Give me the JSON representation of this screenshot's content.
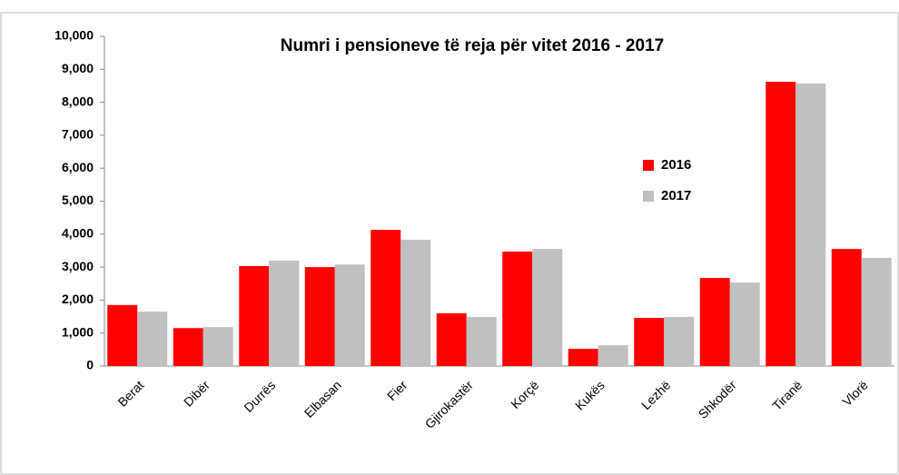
{
  "chart_data": {
    "type": "bar",
    "title": "Numri i pensioneve të reja për vitet 2016 - 2017",
    "categories": [
      "Berat",
      "Dibër",
      "Durrës",
      "Elbasan",
      "Fier",
      "Gjirokastër",
      "Korçë",
      "Kukës",
      "Lezhë",
      "Shkodër",
      "Tiranë",
      "Vlorë"
    ],
    "series": [
      {
        "name": "2016",
        "color": "#ff0000",
        "values": [
          1850,
          1150,
          3030,
          3000,
          4130,
          1600,
          3470,
          520,
          1460,
          2670,
          8620,
          3550
        ]
      },
      {
        "name": "2017",
        "color": "#c0c0c0",
        "values": [
          1650,
          1180,
          3200,
          3080,
          3830,
          1490,
          3550,
          630,
          1490,
          2530,
          8570,
          3280
        ]
      }
    ],
    "ylim": [
      0,
      10000
    ],
    "yticks": [
      0,
      {
        "value": 1000,
        "label": "1,000"
      },
      {
        "value": 2000,
        "label": "2,000"
      },
      {
        "value": 3000,
        "label": "3,000"
      },
      {
        "value": 4000,
        "label": "4,000"
      },
      {
        "value": 5000,
        "label": "5,000"
      },
      {
        "value": 6000,
        "label": "6,000"
      },
      {
        "value": 7000,
        "label": "7,000"
      },
      {
        "value": 8000,
        "label": "8,000"
      },
      {
        "value": 9000,
        "label": "9,000"
      },
      {
        "value": 10000,
        "label": "10,000"
      }
    ],
    "legend": "right"
  }
}
